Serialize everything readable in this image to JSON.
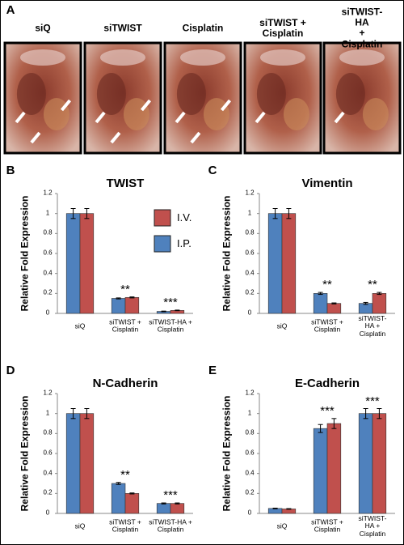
{
  "panel_a": {
    "panel": "A",
    "photos": [
      {
        "label": "siQ"
      },
      {
        "label": "siTWIST"
      },
      {
        "label": "Cisplatin"
      },
      {
        "label": "siTWIST +\nCisplatin"
      },
      {
        "label": "siTWIST-HA\n+ Cisplatin"
      }
    ]
  },
  "chart_data": [
    {
      "type": "bar",
      "panel": "B",
      "title": "TWIST",
      "y_label": "Relative Fold Expression",
      "categories": [
        "siQ",
        "siTWIST +\nCisplatin",
        "siTWIST-HA +\nCisplatin"
      ],
      "series": [
        {
          "name": "I.P.",
          "color": "#4f81bd",
          "values": [
            1,
            0.15,
            0.02
          ],
          "errors": [
            0.05,
            0.005,
            0.003
          ]
        },
        {
          "name": "I.V.",
          "color": "#c0504d",
          "values": [
            1,
            0.16,
            0.03
          ],
          "errors": [
            0.05,
            0.005,
            0.003
          ]
        }
      ],
      "significance": [
        null,
        "**",
        "***"
      ],
      "legend": "upper right",
      "ylim": [
        0,
        1.2
      ],
      "yticks": [
        0,
        0.2,
        0.4,
        0.6,
        0.8,
        1,
        1.2
      ]
    },
    {
      "type": "bar",
      "panel": "C",
      "title": "Vimentin",
      "y_label": "Relative Fold Expression",
      "categories": [
        "siQ",
        "siTWIST +\nCisplatin",
        "siTWIST-HA +\nCisplatin"
      ],
      "series": [
        {
          "color": "#4f81bd",
          "values": [
            1,
            0.2,
            0.1
          ],
          "errors": [
            0.05,
            0.01,
            0.01
          ]
        },
        {
          "color": "#c0504d",
          "values": [
            1,
            0.1,
            0.2
          ],
          "errors": [
            0.05,
            0.005,
            0.01
          ]
        }
      ],
      "significance": [
        null,
        "**",
        "**"
      ],
      "ylim": [
        0,
        1.2
      ],
      "yticks": [
        0,
        0.2,
        0.4,
        0.6,
        0.8,
        1,
        1.2
      ]
    },
    {
      "type": "bar",
      "panel": "D",
      "title": "N-Cadherin",
      "y_label": "Relative Fold Expression",
      "categories": [
        "siQ",
        "siTWIST +\nCisplatin",
        "siTWIST-HA +\nCisplatin"
      ],
      "series": [
        {
          "color": "#4f81bd",
          "values": [
            1,
            0.3,
            0.1
          ],
          "errors": [
            0.05,
            0.01,
            0.005
          ]
        },
        {
          "color": "#c0504d",
          "values": [
            1,
            0.2,
            0.1
          ],
          "errors": [
            0.05,
            0.005,
            0.005
          ]
        }
      ],
      "significance": [
        null,
        "**",
        "***"
      ],
      "ylim": [
        0,
        1.2
      ],
      "yticks": [
        0,
        0.2,
        0.4,
        0.6,
        0.8,
        1,
        1.2
      ]
    },
    {
      "type": "bar",
      "panel": "E",
      "title": "E-Cadherin",
      "y_label": "Relative Fold Expression",
      "categories": [
        "siQ",
        "siTWIST +\nCisplatin",
        "siTWIST-HA +\nCisplatin"
      ],
      "series": [
        {
          "color": "#4f81bd",
          "values": [
            0.05,
            0.85,
            1
          ],
          "errors": [
            0.003,
            0.04,
            0.05
          ]
        },
        {
          "color": "#c0504d",
          "values": [
            0.045,
            0.9,
            1
          ],
          "errors": [
            0.003,
            0.05,
            0.05
          ]
        }
      ],
      "significance": [
        null,
        "***",
        "***"
      ],
      "ylim": [
        0,
        1.2
      ],
      "yticks": [
        0,
        0.2,
        0.4,
        0.6,
        0.8,
        1,
        1.2
      ]
    }
  ]
}
